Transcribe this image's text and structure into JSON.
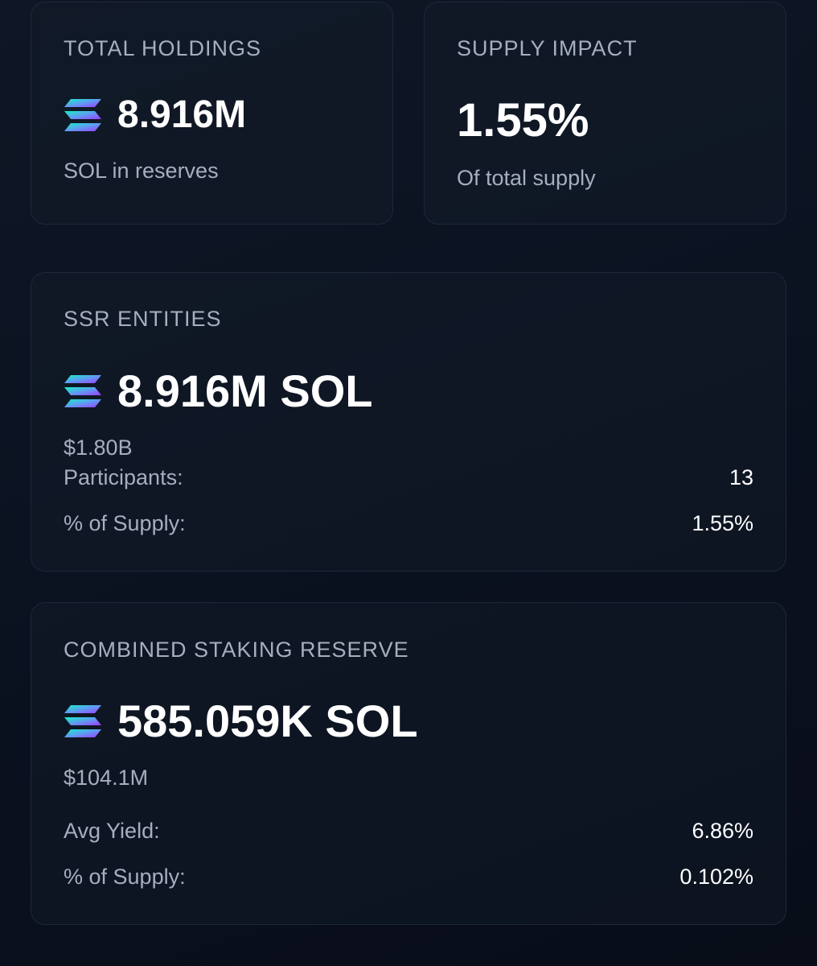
{
  "total_holdings": {
    "title": "TOTAL HOLDINGS",
    "value": "8.916M",
    "subtitle": "SOL in reserves",
    "icon": "solana-logo-icon"
  },
  "supply_impact": {
    "title": "SUPPLY IMPACT",
    "value": "1.55%",
    "subtitle": "Of total supply"
  },
  "ssr_entities": {
    "title": "SSR ENTITIES",
    "value": "8.916M SOL",
    "usd_value": "$1.80B",
    "icon": "solana-logo-icon",
    "stats": [
      {
        "label": "Participants:",
        "value": "13"
      },
      {
        "label": "% of Supply:",
        "value": "1.55%"
      }
    ]
  },
  "combined_staking_reserve": {
    "title": "COMBINED STAKING RESERVE",
    "value": "585.059K SOL",
    "usd_value": "$104.1M",
    "icon": "solana-logo-icon",
    "stats": [
      {
        "label": "Avg Yield:",
        "value": "6.86%"
      },
      {
        "label": "% of Supply:",
        "value": "0.102%"
      }
    ]
  },
  "colors": {
    "background": "#0b1220",
    "card_border": "#1e2838",
    "muted_text": "#a5afbe",
    "primary_text": "#ffffff",
    "sol_gradient_start": "#14f1c6",
    "sol_gradient_mid": "#6b8cf5",
    "sol_gradient_end": "#9945ff"
  }
}
